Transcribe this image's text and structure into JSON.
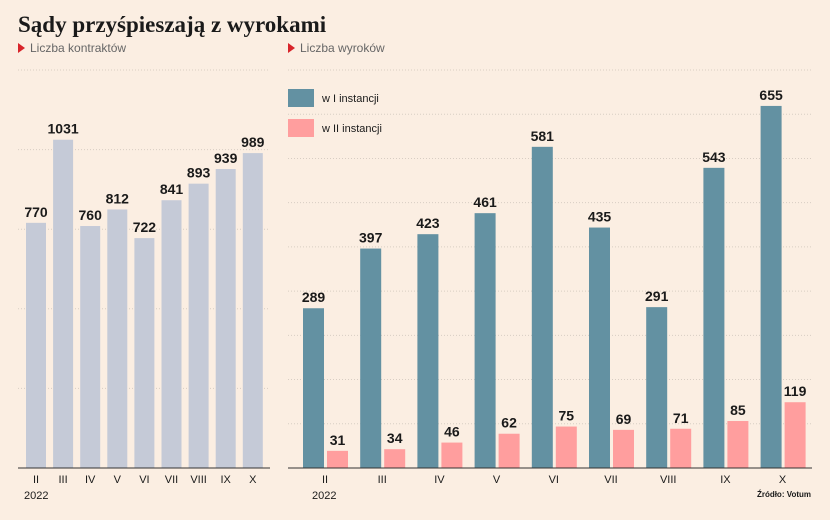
{
  "title": "Sądy przyśpieszają z wyrokami",
  "source": "Źródło: Votum",
  "colors": {
    "background": "#fbeee2",
    "left_bar": "#c5cad7",
    "first_instance": "#6391a2",
    "second_instance": "#ff9e9e",
    "grid": "#d8cdc3",
    "marker": "#d8242a"
  },
  "chart_data": [
    {
      "type": "bar",
      "subtitle": "Liczba kontraktów",
      "categories": [
        "II",
        "III",
        "IV",
        "V",
        "VI",
        "VII",
        "VIII",
        "IX",
        "X"
      ],
      "year_label": "2022",
      "values": [
        770,
        1031,
        760,
        812,
        722,
        841,
        893,
        939,
        989
      ],
      "ylim": [
        0,
        1250
      ],
      "grid": true
    },
    {
      "type": "bar",
      "subtitle": "Liczba wyroków",
      "categories": [
        "II",
        "III",
        "IV",
        "V",
        "VI",
        "VII",
        "VIII",
        "IX",
        "X"
      ],
      "year_label": "2022",
      "legend_position": "top-left",
      "series": [
        {
          "name": "w I instancji",
          "values": [
            289,
            397,
            423,
            461,
            581,
            435,
            291,
            543,
            655
          ]
        },
        {
          "name": "w II instancji",
          "values": [
            31,
            34,
            46,
            62,
            75,
            69,
            71,
            85,
            119
          ]
        }
      ],
      "ylim": [
        0,
        720
      ],
      "grid": true
    }
  ]
}
